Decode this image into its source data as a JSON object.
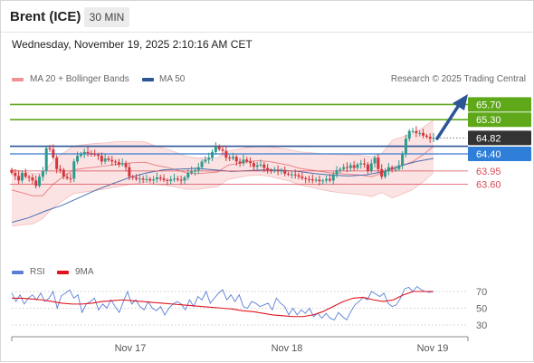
{
  "header": {
    "title": "Brent (ICE)",
    "timeframe": "30 MIN",
    "datetime": "Wednesday, November 19, 2025 2:10:16 AM CET"
  },
  "legend": {
    "bb_label": "MA 20 + Bollinger Bands",
    "ma50_label": "MA 50",
    "credit": "Research © 2025 Trading Central",
    "rsi_label": "RSI",
    "rsi_ma_label": "9MA"
  },
  "colors": {
    "bull": "#2e9a8e",
    "bear": "#d4363d",
    "bollinger_fill": "#fbe3e3",
    "ma20": "#e8868a",
    "ma50": "#4a6fb0",
    "resistance": "#5ea81a",
    "pivot": "#2c5596",
    "support_line": "#5b8fd6",
    "support": "#d84a54",
    "rsi": "#5b7fd6",
    "rsi_ma": "#e0141e",
    "arrow": "#2c5596"
  },
  "chart_data": [
    {
      "type": "candlestick",
      "x_labels": [
        "Nov 17",
        "Nov 18",
        "Nov 19"
      ],
      "ylim": [
        62.4,
        66.2
      ],
      "current_price": 64.82,
      "levels": [
        {
          "value": 65.7,
          "label": "65.70",
          "kind": "resistance"
        },
        {
          "value": 65.3,
          "label": "65.30",
          "kind": "resistance"
        },
        {
          "value": 64.82,
          "label": "64.82",
          "kind": "last"
        },
        {
          "value": 64.6,
          "label": "",
          "kind": "pivot"
        },
        {
          "value": 64.4,
          "label": "64.40",
          "kind": "support-line"
        },
        {
          "value": 63.95,
          "label": "63.95",
          "kind": "support"
        },
        {
          "value": 63.6,
          "label": "63.60",
          "kind": "support"
        }
      ],
      "close": [
        63.9,
        63.82,
        63.7,
        63.9,
        63.8,
        63.78,
        63.7,
        63.56,
        63.8,
        63.95,
        64.55,
        64.52,
        64.3,
        64.0,
        63.98,
        63.8,
        63.76,
        63.75,
        64.2,
        64.35,
        64.4,
        64.45,
        64.42,
        64.4,
        64.38,
        64.35,
        64.2,
        64.28,
        64.24,
        64.2,
        64.18,
        64.12,
        64.15,
        64.05,
        63.8,
        63.78,
        63.74,
        63.75,
        63.72,
        63.74,
        63.7,
        63.73,
        63.78,
        63.75,
        63.71,
        63.69,
        63.73,
        63.75,
        63.72,
        63.7,
        63.78,
        63.9,
        63.94,
        63.97,
        64.05,
        64.2,
        64.25,
        64.3,
        64.45,
        64.6,
        64.52,
        64.48,
        64.3,
        64.28,
        64.32,
        64.2,
        64.15,
        64.25,
        64.2,
        64.16,
        64.06,
        64.1,
        64.12,
        64.03,
        63.97,
        63.95,
        63.97,
        63.95,
        63.96,
        63.88,
        63.86,
        63.86,
        63.84,
        63.8,
        63.76,
        63.74,
        63.73,
        63.7,
        63.72,
        63.68,
        63.7,
        63.74,
        63.7,
        63.86,
        63.97,
        64.0,
        64.05,
        64.03,
        64.1,
        64.03,
        64.12,
        64.15,
        64.12,
        63.95,
        64.15,
        64.3,
        64.0,
        63.8,
        63.95,
        64.05,
        64.0,
        64.0,
        64.1,
        64.4,
        64.8,
        65.0,
        65.0,
        64.95,
        64.95,
        64.88,
        64.85,
        64.8,
        64.82
      ],
      "ma20": [
        63.45,
        63.38,
        63.3,
        63.3,
        63.6,
        63.8,
        63.98,
        64.02,
        64.05,
        64.08,
        64.12,
        64.15,
        64.17,
        64.18,
        64.1,
        64.05,
        63.98,
        63.9,
        63.88,
        63.9,
        63.92,
        64.1,
        64.15,
        64.2,
        64.22,
        64.2,
        64.15,
        64.1,
        64.02,
        63.98,
        63.94,
        63.9,
        63.88,
        63.86,
        63.84,
        63.8,
        63.9,
        64.0,
        64.1,
        64.2,
        64.38,
        64.6
      ],
      "ma50": [
        62.6,
        62.72,
        62.9,
        63.05,
        63.25,
        63.45,
        63.62,
        63.78,
        63.9,
        63.98,
        64.0,
        64.02,
        63.98,
        63.94,
        63.96,
        63.98,
        63.97,
        63.94,
        63.88,
        63.84,
        63.82,
        63.85,
        63.93,
        64.08,
        64.2,
        64.28
      ]
    },
    {
      "type": "line",
      "name": "RSI",
      "ylim": [
        20,
        80
      ],
      "y_ticks": [
        70,
        50,
        30
      ],
      "series": [
        {
          "name": "RSI",
          "values": [
            68,
            58,
            66,
            55,
            62,
            66,
            60,
            68,
            58,
            62,
            70,
            50,
            65,
            68,
            72,
            62,
            66,
            45,
            55,
            58,
            62,
            48,
            55,
            50,
            60,
            52,
            45,
            58,
            70,
            55,
            60,
            52,
            48,
            58,
            50,
            47,
            52,
            42,
            50,
            55,
            58,
            55,
            48,
            60,
            52,
            64,
            60,
            70,
            56,
            62,
            68,
            72,
            60,
            66,
            58,
            66,
            52,
            50,
            58,
            56,
            52,
            54,
            56,
            48,
            62,
            56,
            52,
            42,
            50,
            42,
            48,
            44,
            50,
            40,
            44,
            38,
            44,
            38,
            36,
            45,
            40,
            36,
            46,
            54,
            58,
            63,
            60,
            70,
            67,
            64,
            68,
            56,
            52,
            54,
            62,
            73,
            75,
            70,
            76,
            72,
            70,
            69,
            70
          ]
        },
        {
          "name": "9MA",
          "values": [
            62,
            62,
            61,
            60,
            58,
            56,
            55,
            55,
            56,
            58,
            59,
            60,
            59,
            58,
            57,
            56,
            55,
            54,
            53,
            52,
            51,
            50,
            49,
            47,
            46,
            44,
            42,
            41,
            40,
            40,
            42,
            46,
            52,
            58,
            62,
            63,
            60,
            58,
            60,
            66,
            70,
            70,
            70
          ]
        }
      ]
    }
  ]
}
